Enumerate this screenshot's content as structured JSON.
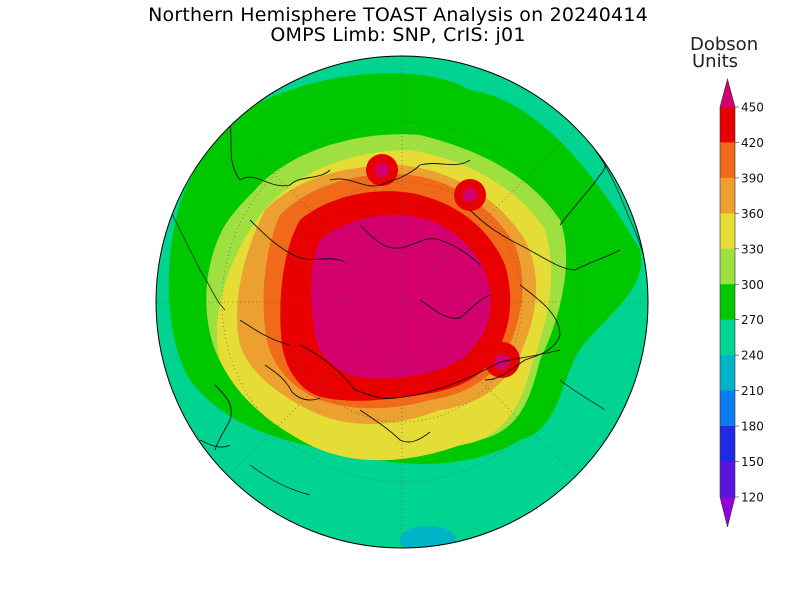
{
  "title": {
    "line1": "Northern Hemisphere TOAST Analysis on 20240414",
    "line2": "OMPS Limb: SNP, CrIS: j01"
  },
  "colorbar": {
    "units_line1": "Dobson",
    "units_line2": "Units",
    "ticks": [
      "450",
      "420",
      "390",
      "360",
      "330",
      "300",
      "270",
      "240",
      "210",
      "180",
      "150",
      "120"
    ],
    "bands_top_to_bottom": [
      "#d4006e",
      "#e80000",
      "#f06a1a",
      "#eca030",
      "#e6dc36",
      "#9ee040",
      "#00c800",
      "#00d490",
      "#00b4c8",
      "#0a7cf0",
      "#1e2ae6",
      "#5a14dc",
      "#9400d8"
    ]
  },
  "colors": {
    "band_240_270": "#00d490",
    "band_270_300": "#00c800",
    "band_300_330": "#9ee040",
    "band_330_360": "#e6dc36",
    "band_360_390": "#eca030",
    "band_390_420": "#f06a1a",
    "band_420_450": "#e80000",
    "band_above_450": "#d4006e",
    "band_210_240": "#00b4c8"
  }
}
